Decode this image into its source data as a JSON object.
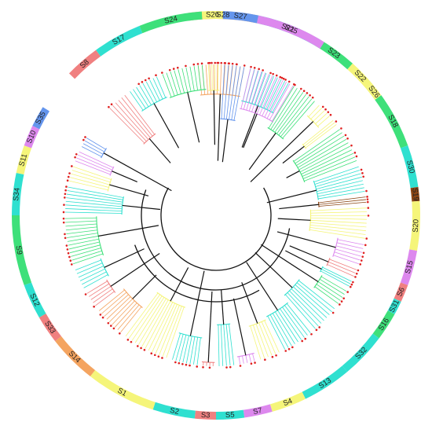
{
  "figure": {
    "type": "circular-phylogenetic-tree",
    "branch_color_default": "#111111",
    "marker_color": "#e02020",
    "subfamilies": [
      {
        "name": "S28",
        "color": "#f4a460"
      },
      {
        "name": "S21",
        "color": "#2fe0d0"
      },
      {
        "name": "S23",
        "color": "#3ee07a"
      },
      {
        "name": "S22",
        "color": "#f5f57a"
      },
      {
        "name": "S26",
        "color": "#f5f57a"
      },
      {
        "name": "S18",
        "color": "#3ee07a"
      },
      {
        "name": "S30",
        "color": "#2fe0d0"
      },
      {
        "name": "S19",
        "color": "#8b4513"
      },
      {
        "name": "S20",
        "color": "#f5f57a"
      },
      {
        "name": "S15",
        "color": "#dd88ee"
      },
      {
        "name": "S6",
        "color": "#f08080"
      },
      {
        "name": "S31",
        "color": "#2fe0d0"
      },
      {
        "name": "S16",
        "color": "#3ee07a"
      },
      {
        "name": "S32",
        "color": "#2fe0d0"
      },
      {
        "name": "S13",
        "color": "#2fe0d0"
      },
      {
        "name": "S4",
        "color": "#f5f57a"
      },
      {
        "name": "S7",
        "color": "#dd88ee"
      },
      {
        "name": "S5",
        "color": "#2fe0d0"
      },
      {
        "name": "S3",
        "color": "#f08080"
      },
      {
        "name": "S2",
        "color": "#2fe0d0"
      },
      {
        "name": "S1",
        "color": "#f5f57a"
      },
      {
        "name": "S14",
        "color": "#f4a460"
      },
      {
        "name": "S33",
        "color": "#f08080"
      },
      {
        "name": "S12",
        "color": "#2fe0d0"
      },
      {
        "name": "S9",
        "color": "#3ee07a"
      },
      {
        "name": "S34",
        "color": "#2fe0d0"
      },
      {
        "name": "S11",
        "color": "#f5f57a"
      },
      {
        "name": "S10",
        "color": "#dd88ee"
      },
      {
        "name": "S35",
        "color": "#6495ed"
      },
      {
        "name": "S8",
        "color": "#f08080"
      },
      {
        "name": "S17",
        "color": "#2fe0d0"
      },
      {
        "name": "S24",
        "color": "#3ee07a"
      },
      {
        "name": "S26",
        "color": "#f5f57a"
      },
      {
        "name": "S27",
        "color": "#6495ed"
      },
      {
        "name": "S25",
        "color": "#dd88ee"
      }
    ]
  }
}
